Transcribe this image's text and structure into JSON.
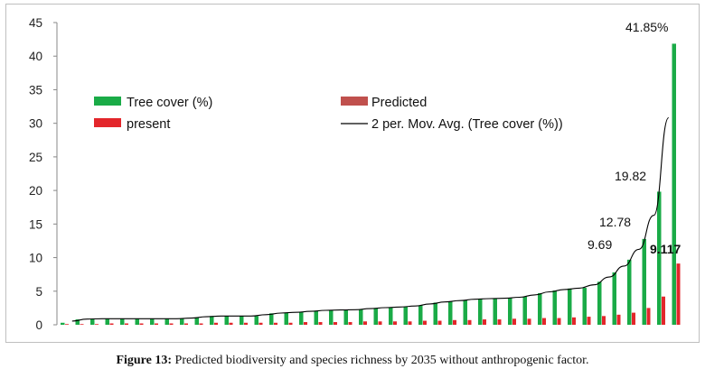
{
  "chart_data": {
    "type": "bar",
    "ylim": [
      0,
      45
    ],
    "yticks": [
      0,
      5,
      10,
      15,
      20,
      25,
      30,
      35,
      40,
      45
    ],
    "grid": false,
    "legend_position": "top-left",
    "series": [
      {
        "name": "Tree cover (%)",
        "color": "#1aab47",
        "values": [
          0.3,
          0.8,
          0.9,
          0.9,
          0.9,
          0.9,
          0.9,
          0.9,
          0.9,
          1.1,
          1.3,
          1.3,
          1.3,
          1.3,
          1.7,
          1.8,
          1.9,
          2.1,
          2.2,
          2.2,
          2.3,
          2.5,
          2.6,
          2.7,
          2.9,
          3.3,
          3.5,
          3.7,
          3.9,
          3.9,
          4.0,
          4.2,
          4.7,
          5.1,
          5.4,
          5.5,
          6.4,
          7.8,
          9.69,
          12.78,
          19.82,
          41.85
        ]
      },
      {
        "name": "present",
        "color": "#e3262b",
        "values": [
          0.1,
          0.1,
          0.1,
          0.2,
          0.2,
          0.2,
          0.2,
          0.2,
          0.2,
          0.2,
          0.3,
          0.3,
          0.3,
          0.3,
          0.3,
          0.3,
          0.4,
          0.4,
          0.4,
          0.4,
          0.5,
          0.5,
          0.5,
          0.5,
          0.6,
          0.6,
          0.7,
          0.7,
          0.8,
          0.8,
          0.9,
          0.9,
          1.0,
          1.0,
          1.1,
          1.2,
          1.3,
          1.5,
          1.8,
          2.5,
          4.2,
          9.117
        ]
      },
      {
        "name": "Predicted",
        "color": "#c0504d"
      },
      {
        "name": "2 per. Mov. Avg. (Tree cover (%))",
        "color": "#000000",
        "type": "line"
      }
    ],
    "annotations": [
      "9.69",
      "12.78",
      "19.82",
      "41.85%",
      "9.117"
    ]
  },
  "caption": {
    "label": "Figure 13:",
    "text": " Predicted biodiversity and species richness by 2035 without anthropogenic factor."
  }
}
